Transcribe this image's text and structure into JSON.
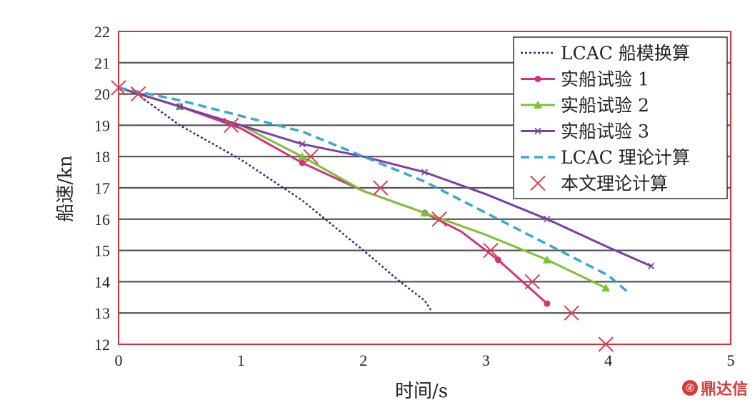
{
  "chart_data": {
    "type": "line",
    "xlabel": "时间/s",
    "ylabel": "船速/kn",
    "xlim": [
      0,
      5
    ],
    "ylim": [
      12,
      22
    ],
    "xticks": [
      0,
      1,
      2,
      3,
      4,
      5
    ],
    "yticks": [
      12,
      13,
      14,
      15,
      16,
      17,
      18,
      19,
      20,
      21,
      22
    ],
    "grid": "horizontal",
    "legend_position": "top-right",
    "series": [
      {
        "name": "LCAC 船模换算",
        "color": "#2b2f7e",
        "style": "dotted",
        "marker": "none",
        "x": [
          0.15,
          0.5,
          1.0,
          1.5,
          2.0,
          2.3,
          2.5,
          2.55
        ],
        "y": [
          20.0,
          19.0,
          17.9,
          16.6,
          15.0,
          14.0,
          13.4,
          13.1
        ]
      },
      {
        "name": "实船试验 1",
        "color": "#d6317d",
        "style": "solid",
        "marker": "circle",
        "x": [
          0.0,
          0.5,
          1.0,
          1.5,
          2.0,
          2.5,
          2.8,
          3.1,
          3.3,
          3.5
        ],
        "y": [
          20.2,
          19.6,
          18.9,
          17.8,
          16.9,
          16.2,
          15.6,
          14.7,
          14.0,
          13.3
        ]
      },
      {
        "name": "实船试验 2",
        "color": "#7dc234",
        "style": "solid",
        "marker": "triangle",
        "x": [
          0.0,
          0.5,
          1.0,
          1.5,
          2.0,
          2.5,
          3.0,
          3.5,
          3.98
        ],
        "y": [
          20.2,
          19.6,
          19.0,
          18.0,
          16.9,
          16.2,
          15.5,
          14.7,
          13.8
        ]
      },
      {
        "name": "实船试验 3",
        "color": "#7b3fa3",
        "style": "solid",
        "marker": "star",
        "x": [
          0.0,
          0.5,
          1.0,
          1.5,
          2.0,
          2.5,
          3.0,
          3.5,
          4.0,
          4.35
        ],
        "y": [
          20.2,
          19.6,
          19.0,
          18.4,
          18.0,
          17.5,
          16.8,
          16.0,
          15.1,
          14.5
        ]
      },
      {
        "name": "LCAC 理论计算",
        "color": "#38a9cf",
        "style": "dashed",
        "marker": "none",
        "x": [
          0.0,
          0.5,
          1.0,
          1.5,
          2.0,
          2.5,
          3.0,
          3.5,
          4.0,
          4.15
        ],
        "y": [
          20.2,
          19.8,
          19.3,
          18.8,
          18.0,
          17.2,
          16.2,
          15.2,
          14.2,
          13.7
        ]
      },
      {
        "name": "本文理论计算",
        "color": "#e03c50",
        "style": "none",
        "marker": "x",
        "x": [
          0.0,
          0.16,
          0.92,
          1.57,
          2.14,
          2.62,
          3.04,
          3.38,
          3.7,
          3.98
        ],
        "y": [
          20.2,
          20.0,
          19.0,
          18.0,
          17.0,
          16.0,
          15.0,
          14.0,
          13.0,
          12.0
        ]
      }
    ]
  },
  "watermark": {
    "text": "鼎达信",
    "logo_glyph": "ⓓ"
  }
}
